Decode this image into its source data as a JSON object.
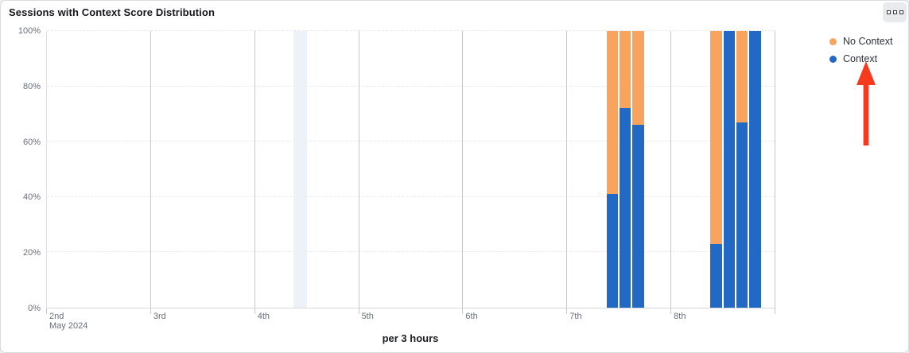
{
  "header": {
    "title": "Sessions with Context Score Distribution",
    "menu_icon": "three-squares-ellipsis"
  },
  "legend": {
    "items": [
      {
        "label": "No Context",
        "color": "#f8a45e"
      },
      {
        "label": "Context",
        "color": "#2268c5"
      }
    ]
  },
  "annotation": {
    "type": "red-arrow-up",
    "points_at": "Context legend item",
    "color": "#f53a20"
  },
  "chart_data": {
    "type": "bar",
    "stacked": true,
    "orientation": "vertical",
    "title": "Sessions with Context Score Distribution",
    "x_label": "per 3 hours",
    "interval_hours": 3,
    "days_shown": 7,
    "slots_per_day": 8,
    "x_day_ticks": [
      "2nd",
      "3rd",
      "4th",
      "5th",
      "6th",
      "7th",
      "8th"
    ],
    "x_first_tick_sub": "May 2024",
    "y_ticks": [
      "0%",
      "20%",
      "40%",
      "60%",
      "80%",
      "100%"
    ],
    "ylim": [
      0,
      100
    ],
    "grid": {
      "horizontal": "dashed",
      "vertical_day_lines": true
    },
    "legend_position": "top-right",
    "series": [
      {
        "name": "Context",
        "color": "#2268c5"
      },
      {
        "name": "No Context",
        "color": "#f8a45e"
      }
    ],
    "bars": [
      {
        "date": "May 7 2024",
        "time": "09:00",
        "slot": 43,
        "context_pct": 41,
        "no_context_pct": 59
      },
      {
        "date": "May 7 2024",
        "time": "12:00",
        "slot": 44,
        "context_pct": 72,
        "no_context_pct": 28
      },
      {
        "date": "May 7 2024",
        "time": "15:00",
        "slot": 45,
        "context_pct": 66,
        "no_context_pct": 34
      },
      {
        "date": "May 8 2024",
        "time": "09:00",
        "slot": 51,
        "context_pct": 23,
        "no_context_pct": 77
      },
      {
        "date": "May 8 2024",
        "time": "12:00",
        "slot": 52,
        "context_pct": 100,
        "no_context_pct": 0
      },
      {
        "date": "May 8 2024",
        "time": "15:00",
        "slot": 53,
        "context_pct": 67,
        "no_context_pct": 33
      },
      {
        "date": "May 8 2024",
        "time": "18:00",
        "slot": 54,
        "context_pct": 100,
        "no_context_pct": 0
      }
    ],
    "highlighted_slot": {
      "slot": 19,
      "date": "May 4 2024",
      "time": "09:00",
      "color": "#edf2f8"
    }
  }
}
